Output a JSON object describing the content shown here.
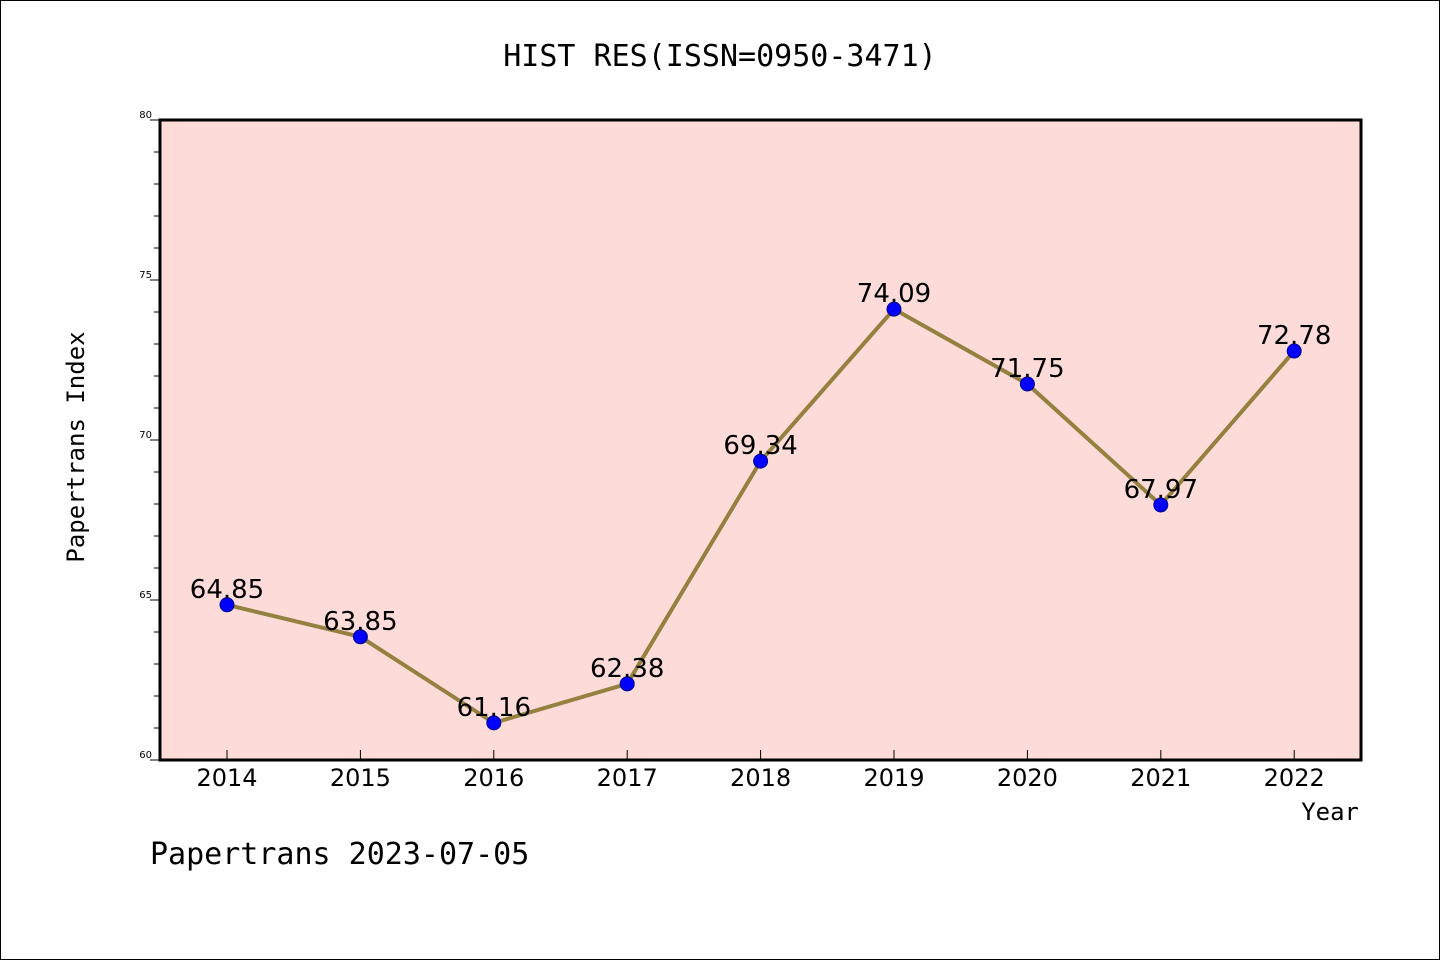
{
  "chart_data": {
    "type": "line",
    "title": "HIST RES(ISSN=0950-3471)",
    "xlabel": "Year",
    "ylabel": "Papertrans Index",
    "categories": [
      "2014",
      "2015",
      "2016",
      "2017",
      "2018",
      "2019",
      "2020",
      "2021",
      "2022"
    ],
    "values": [
      64.85,
      63.85,
      61.16,
      62.38,
      69.34,
      74.09,
      71.75,
      67.97,
      72.78
    ],
    "value_labels": [
      "64.85",
      "63.85",
      "61.16",
      "62.38",
      "69.34",
      "74.09",
      "71.75",
      "67.97",
      "72.78"
    ],
    "ylim": [
      60,
      80
    ],
    "yticks": [
      "60",
      "65",
      "70",
      "75",
      "80"
    ],
    "grid": false,
    "line_color": "#94803f",
    "marker_color": "#0000ff",
    "plot_background": "#fddbd9"
  },
  "footer": {
    "text": "Papertrans 2023-07-05"
  }
}
